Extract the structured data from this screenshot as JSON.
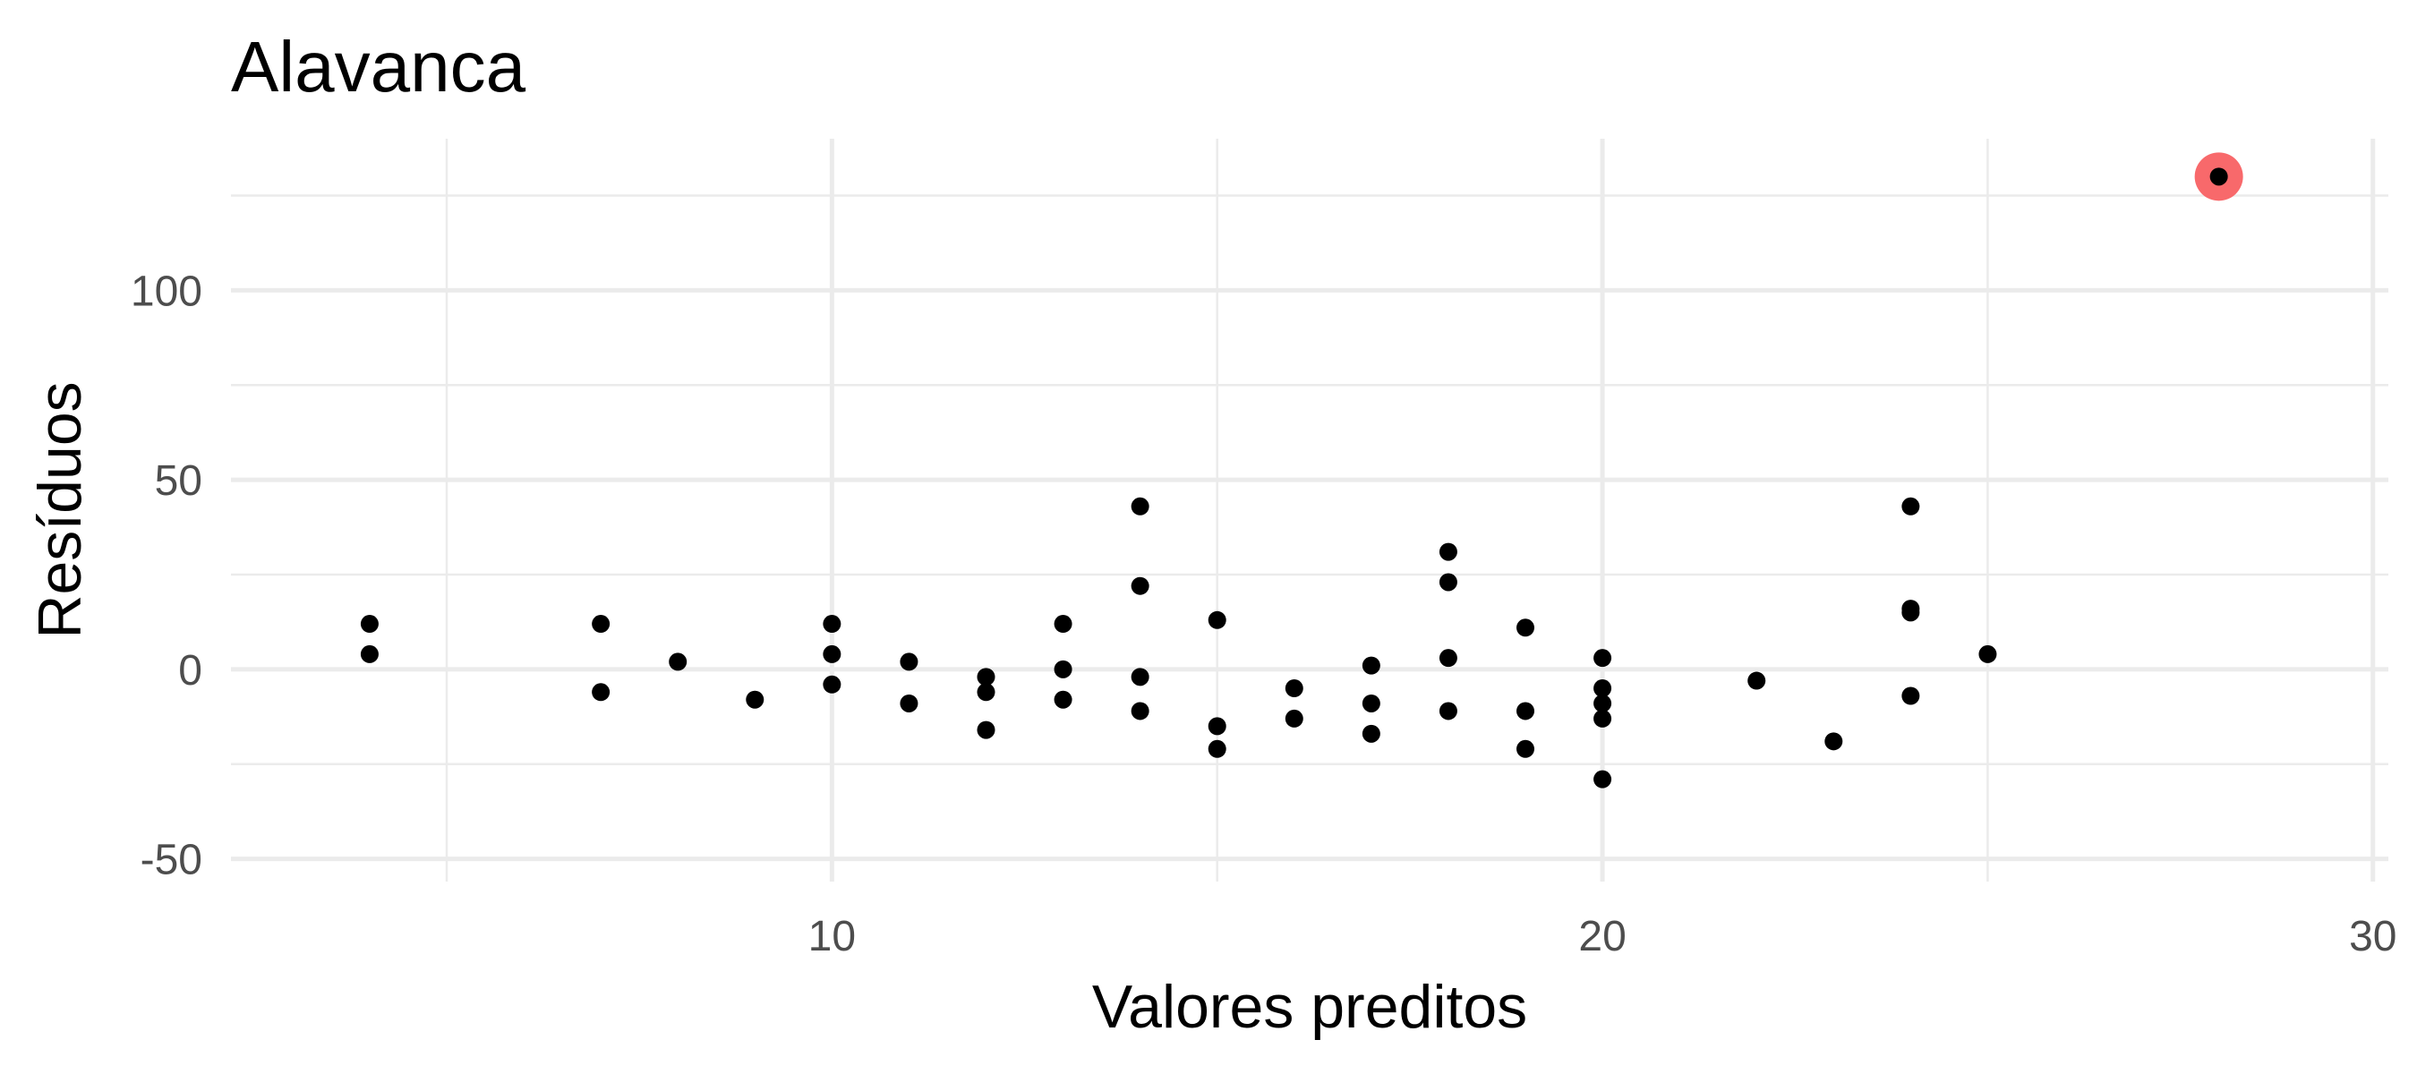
{
  "chart_data": {
    "type": "scatter",
    "title": "Alavanca",
    "xlabel": "Valores preditos",
    "ylabel": "Resíduos",
    "xlim": [
      2.2,
      30.2
    ],
    "ylim": [
      -56,
      140
    ],
    "x_ticks": [
      10,
      20,
      30
    ],
    "x_tick_labels": [
      "10",
      "20",
      "30"
    ],
    "x_minor_ticks": [
      5,
      15,
      25
    ],
    "y_ticks": [
      -50,
      0,
      50,
      100
    ],
    "y_tick_labels": [
      "-50",
      "0",
      "50",
      "100"
    ],
    "y_minor_ticks": [
      -25,
      25,
      75,
      125
    ],
    "grid": true,
    "legend": "none",
    "point_color": "#000000",
    "highlight_color": "#f8696b",
    "points": [
      {
        "x": 4,
        "y": 12
      },
      {
        "x": 4,
        "y": 4
      },
      {
        "x": 7,
        "y": 12
      },
      {
        "x": 7,
        "y": -6
      },
      {
        "x": 8,
        "y": 2
      },
      {
        "x": 9,
        "y": -8
      },
      {
        "x": 10,
        "y": 12
      },
      {
        "x": 10,
        "y": 4
      },
      {
        "x": 10,
        "y": -4
      },
      {
        "x": 11,
        "y": 2
      },
      {
        "x": 11,
        "y": -9
      },
      {
        "x": 12,
        "y": -2
      },
      {
        "x": 12,
        "y": -6
      },
      {
        "x": 12,
        "y": -16
      },
      {
        "x": 13,
        "y": 12
      },
      {
        "x": 13,
        "y": 0
      },
      {
        "x": 13,
        "y": -8
      },
      {
        "x": 14,
        "y": 43
      },
      {
        "x": 14,
        "y": 22
      },
      {
        "x": 14,
        "y": -2
      },
      {
        "x": 14,
        "y": -11
      },
      {
        "x": 15,
        "y": 13
      },
      {
        "x": 15,
        "y": -15
      },
      {
        "x": 15,
        "y": -21
      },
      {
        "x": 16,
        "y": -5
      },
      {
        "x": 16,
        "y": -13
      },
      {
        "x": 17,
        "y": 1
      },
      {
        "x": 17,
        "y": -9
      },
      {
        "x": 17,
        "y": -17
      },
      {
        "x": 18,
        "y": 31
      },
      {
        "x": 18,
        "y": 23
      },
      {
        "x": 18,
        "y": 3
      },
      {
        "x": 18,
        "y": -11
      },
      {
        "x": 19,
        "y": 11
      },
      {
        "x": 19,
        "y": -11
      },
      {
        "x": 19,
        "y": -21
      },
      {
        "x": 20,
        "y": 3
      },
      {
        "x": 20,
        "y": -5
      },
      {
        "x": 20,
        "y": -9
      },
      {
        "x": 20,
        "y": -13
      },
      {
        "x": 20,
        "y": -29
      },
      {
        "x": 22,
        "y": -3
      },
      {
        "x": 23,
        "y": -19
      },
      {
        "x": 24,
        "y": 43
      },
      {
        "x": 24,
        "y": 16
      },
      {
        "x": 24,
        "y": 15
      },
      {
        "x": 24,
        "y": -7
      },
      {
        "x": 25,
        "y": 4
      },
      {
        "x": 28,
        "y": 130,
        "highlight": true
      }
    ]
  }
}
